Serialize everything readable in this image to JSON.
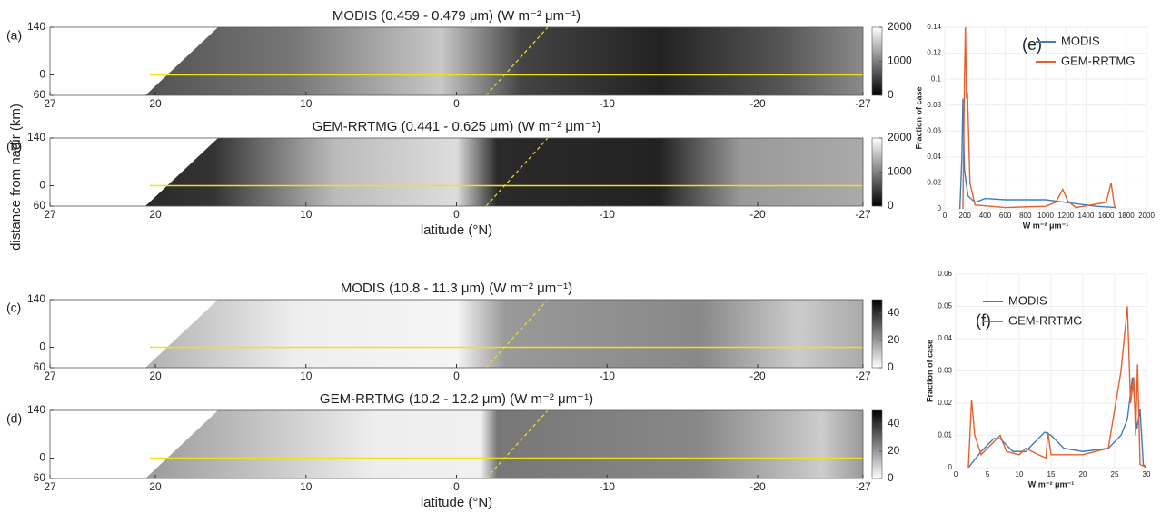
{
  "chart_data": [
    {
      "type": "image",
      "title": "MODIS (0.459 - 0.479 μm) (W m⁻² μm⁻¹)",
      "panel_label": "(a)",
      "ylabel": "distance from nadir (km)",
      "xlim": [
        27,
        -27
      ],
      "xticks": [
        27,
        20,
        10,
        0,
        -10,
        -20,
        -27
      ],
      "ylim": [
        -60,
        140
      ],
      "yticks": [
        {
          "value": -60,
          "label": "60"
        },
        0,
        140
      ],
      "clim": [
        0,
        2000
      ],
      "cticks": [
        0,
        1000,
        2000
      ],
      "cmap": "gray"
    },
    {
      "type": "image",
      "title": "GEM-RRTMG (0.441 - 0.625 μm) (W m⁻² μm⁻¹)",
      "panel_label": "(b)",
      "xlabel": "latitude (°N)",
      "xlim": [
        27,
        -27
      ],
      "xticks": [
        27,
        20,
        10,
        0,
        -10,
        -20,
        -27
      ],
      "ylim": [
        -60,
        140
      ],
      "yticks": [
        {
          "value": -60,
          "label": "60"
        },
        0,
        140
      ],
      "clim": [
        0,
        2000
      ],
      "cticks": [
        0,
        1000,
        2000
      ],
      "cmap": "gray"
    },
    {
      "type": "image",
      "title": "MODIS (10.8 - 11.3 μm) (W m⁻² μm⁻¹)",
      "panel_label": "(c)",
      "xlim": [
        27,
        -27
      ],
      "xticks": [
        27,
        20,
        10,
        0,
        -10,
        -20,
        -27
      ],
      "ylim": [
        -60,
        140
      ],
      "yticks": [
        {
          "value": -60,
          "label": "60"
        },
        0,
        140
      ],
      "clim": [
        0,
        50
      ],
      "cticks": [
        0,
        20,
        40
      ],
      "cmap": "gray_r"
    },
    {
      "type": "image",
      "title": "GEM-RRTMG (10.2 - 12.2 μm) (W m⁻² μm⁻¹)",
      "panel_label": "(d)",
      "xlabel": "latitude (°N)",
      "xlim": [
        27,
        -27
      ],
      "xticks": [
        27,
        20,
        10,
        0,
        -10,
        -20,
        -27
      ],
      "ylim": [
        -60,
        140
      ],
      "yticks": [
        {
          "value": -60,
          "label": "60"
        },
        0,
        140
      ],
      "clim": [
        0,
        50
      ],
      "cticks": [
        0,
        20,
        40
      ],
      "cmap": "gray_r"
    },
    {
      "type": "line",
      "panel_label": "(e)",
      "xlabel": "W m⁻² μm⁻¹",
      "ylabel": "Fraction of case",
      "xlim": [
        0,
        2000
      ],
      "xticks": [
        0,
        200,
        400,
        600,
        800,
        1000,
        1200,
        1400,
        1600,
        1800,
        2000
      ],
      "ylim": [
        0,
        0.14
      ],
      "yticks": [
        0,
        0.02,
        0.04,
        0.06,
        0.08,
        0.1,
        0.12,
        0.14
      ],
      "grid": true,
      "legend": "upper right",
      "series": [
        {
          "name": "MODIS",
          "color": "#3b7dbf",
          "x": [
            150,
            170,
            180,
            195,
            230,
            300,
            400,
            600,
            800,
            1000,
            1100,
            1300,
            1500,
            1700
          ],
          "values": [
            0,
            0.04,
            0.085,
            0.03,
            0.01,
            0.005,
            0.008,
            0.007,
            0.007,
            0.007,
            0.006,
            0.004,
            0.002,
            0.001
          ]
        },
        {
          "name": "GEM-RRTMG",
          "color": "#e4602e",
          "x": [
            180,
            195,
            205,
            215,
            225,
            250,
            300,
            600,
            1000,
            1100,
            1170,
            1220,
            1300,
            1600,
            1650,
            1680,
            1700
          ],
          "values": [
            0,
            0.1,
            0.14,
            0.085,
            0.09,
            0.02,
            0.003,
            0.001,
            0.002,
            0.005,
            0.015,
            0.006,
            0.001,
            0.005,
            0.02,
            0.003,
            0
          ]
        }
      ]
    },
    {
      "type": "line",
      "panel_label": "(f)",
      "xlabel": "W m⁻² μm⁻¹",
      "ylabel": "Fraction of case",
      "xlim": [
        0,
        30
      ],
      "xticks": [
        0,
        5,
        10,
        15,
        20,
        25,
        30
      ],
      "ylim": [
        0,
        0.06
      ],
      "yticks": [
        0,
        0.01,
        0.02,
        0.03,
        0.04,
        0.05,
        0.06
      ],
      "grid": true,
      "legend": "upper left",
      "series": [
        {
          "name": "MODIS",
          "color": "#3b7dbf",
          "x": [
            2,
            4,
            6,
            7,
            9,
            11,
            14,
            15,
            17,
            20,
            24,
            26,
            27,
            27.8,
            28.5,
            29,
            29.5,
            30
          ],
          "values": [
            0,
            0.005,
            0.009,
            0.009,
            0.005,
            0.005,
            0.011,
            0.01,
            0.006,
            0.005,
            0.006,
            0.01,
            0.015,
            0.028,
            0.012,
            0.018,
            0.001,
            0
          ]
        },
        {
          "name": "GEM-RRTMG",
          "color": "#e4602e",
          "x": [
            2,
            2.5,
            3,
            4,
            6,
            7,
            8,
            10,
            11,
            13,
            14.2,
            14.5,
            15,
            20,
            24,
            26,
            27,
            27.5,
            28,
            28.3,
            28.6,
            29,
            30
          ],
          "values": [
            0,
            0.021,
            0.01,
            0.004,
            0.008,
            0.01,
            0.005,
            0.004,
            0.006,
            0.004,
            0.003,
            0.011,
            0.004,
            0.004,
            0.006,
            0.03,
            0.05,
            0.02,
            0.028,
            0.01,
            0.032,
            0.001,
            0
          ]
        }
      ]
    }
  ]
}
